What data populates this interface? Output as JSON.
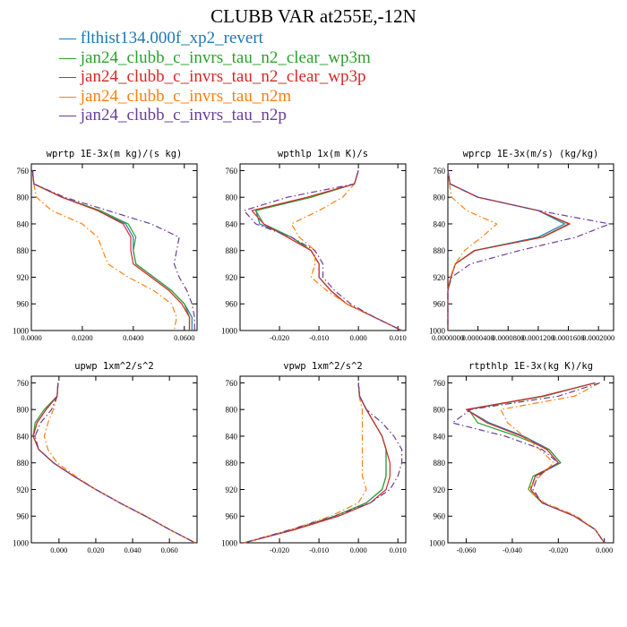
{
  "figure": {
    "title": "CLUBB VAR at255E,-12N",
    "legend": [
      {
        "label": "flthist134.000f_xp2_revert",
        "color": "#1f77b4",
        "dash": "solid"
      },
      {
        "label": "jan24_clubb_c_invrs_tau_n2_clear_wp3m",
        "color": "#2ca02c",
        "dash": "solid"
      },
      {
        "label": "jan24_clubb_c_invrs_tau_n2_clear_wp3p",
        "color": "#d62728",
        "dash": "solid"
      },
      {
        "label": "jan24_clubb_c_invrs_tau_n2m",
        "color": "#ff7f0e",
        "dash": "dashdot"
      },
      {
        "label": "jan24_clubb_c_invrs_tau_n2p",
        "color": "#6a3d9a",
        "dash": "dashdot"
      }
    ]
  },
  "chart_data": [
    {
      "type": "line",
      "title": "wprtp  1E-3x(m kg)/(s kg)",
      "xlim": [
        0.0,
        0.065
      ],
      "xticks": [
        0.0,
        0.02,
        0.04,
        0.06
      ],
      "xtick_labels": [
        "0.0000",
        "0.0200",
        "0.0400",
        "0.0600"
      ],
      "ylim": [
        1000,
        750
      ],
      "yticks": [
        760,
        800,
        840,
        880,
        920,
        960,
        1000
      ],
      "y": [
        760,
        780,
        800,
        820,
        840,
        860,
        880,
        900,
        920,
        940,
        960,
        980,
        1000
      ],
      "series": [
        {
          "values": [
            0.0005,
            0.001,
            0.012,
            0.026,
            0.037,
            0.04,
            0.04,
            0.041,
            0.048,
            0.055,
            0.06,
            0.063,
            0.063
          ]
        },
        {
          "values": [
            0.0005,
            0.001,
            0.012,
            0.027,
            0.038,
            0.041,
            0.04,
            0.041,
            0.048,
            0.055,
            0.06,
            0.062,
            0.062
          ]
        },
        {
          "values": [
            0.0005,
            0.001,
            0.012,
            0.026,
            0.036,
            0.039,
            0.039,
            0.04,
            0.047,
            0.054,
            0.059,
            0.062,
            0.062
          ]
        },
        {
          "values": [
            0.0005,
            0.001,
            0.002,
            0.008,
            0.02,
            0.026,
            0.028,
            0.03,
            0.038,
            0.048,
            0.055,
            0.057,
            0.056
          ]
        },
        {
          "values": [
            0.0005,
            0.001,
            0.013,
            0.03,
            0.047,
            0.058,
            0.057,
            0.056,
            0.058,
            0.061,
            0.063,
            0.064,
            0.064
          ]
        }
      ]
    },
    {
      "type": "line",
      "title": "wpthlp  1x(m K)/s",
      "xlim": [
        -0.03,
        0.012
      ],
      "xticks": [
        -0.02,
        -0.01,
        0.0,
        0.01
      ],
      "xtick_labels": [
        "-0.020",
        "-0.010",
        "0.000",
        "0.010"
      ],
      "ylim": [
        1000,
        750
      ],
      "yticks": [
        760,
        800,
        840,
        880,
        920,
        960,
        1000
      ],
      "y": [
        760,
        780,
        800,
        820,
        840,
        860,
        880,
        900,
        920,
        940,
        960,
        980,
        1000
      ],
      "series": [
        {
          "values": [
            0.0,
            -0.001,
            -0.012,
            -0.026,
            -0.025,
            -0.017,
            -0.012,
            -0.01,
            -0.01,
            -0.007,
            -0.003,
            0.004,
            0.011
          ]
        },
        {
          "values": [
            0.0,
            -0.001,
            -0.012,
            -0.026,
            -0.024,
            -0.017,
            -0.012,
            -0.01,
            -0.01,
            -0.007,
            -0.003,
            0.004,
            0.011
          ]
        },
        {
          "values": [
            0.0,
            -0.001,
            -0.013,
            -0.027,
            -0.024,
            -0.018,
            -0.012,
            -0.01,
            -0.01,
            -0.007,
            -0.003,
            0.004,
            0.011
          ]
        },
        {
          "values": [
            0.0,
            -0.001,
            -0.004,
            -0.01,
            -0.017,
            -0.015,
            -0.011,
            -0.011,
            -0.012,
            -0.008,
            -0.003,
            0.004,
            0.011
          ]
        },
        {
          "values": [
            0.0,
            -0.001,
            -0.018,
            -0.029,
            -0.026,
            -0.017,
            -0.011,
            -0.009,
            -0.009,
            -0.006,
            -0.002,
            0.004,
            0.011
          ]
        }
      ]
    },
    {
      "type": "line",
      "title": "wprcp  1E-3x(m/s) (kg/kg)",
      "xlim": [
        0.0,
        0.00022
      ],
      "xticks": [
        0.0,
        4e-05,
        8e-05,
        0.00012,
        0.00016,
        0.0002
      ],
      "xtick_labels": [
        "0.0000000",
        "0.0000400",
        "0.0000800",
        "0.0001200",
        "0.0001600",
        "0.0002000"
      ],
      "ylim": [
        1000,
        750
      ],
      "yticks": [
        760,
        800,
        840,
        880,
        920,
        960,
        1000
      ],
      "y": [
        760,
        780,
        800,
        820,
        840,
        860,
        880,
        900,
        920,
        940,
        960,
        980,
        1000
      ],
      "series": [
        {
          "values": [
            0.0,
            3e-06,
            4e-05,
            0.00012,
            0.000155,
            0.00012,
            3.5e-05,
            1e-05,
            4e-06,
            0.0,
            0.0,
            0.0,
            0.0
          ]
        },
        {
          "values": [
            0.0,
            3e-06,
            4e-05,
            0.00012,
            0.00016,
            0.000125,
            3.5e-05,
            1e-05,
            4e-06,
            0.0,
            0.0,
            0.0,
            0.0
          ]
        },
        {
          "values": [
            0.0,
            3e-06,
            4e-05,
            0.00012,
            0.000162,
            0.000126,
            3.6e-05,
            1e-05,
            4e-06,
            0.0,
            0.0,
            0.0,
            0.0
          ]
        },
        {
          "values": [
            0.0,
            2e-06,
            5e-06,
            2.5e-05,
            6.5e-05,
            4.5e-05,
            2.2e-05,
            1e-05,
            3e-06,
            0.0,
            0.0,
            0.0,
            0.0
          ]
        },
        {
          "values": [
            0.0,
            3e-06,
            4e-05,
            0.00012,
            0.000215,
            0.00017,
            9.5e-05,
            3e-05,
            5e-06,
            0.0,
            0.0,
            0.0,
            0.0
          ]
        }
      ]
    },
    {
      "type": "line",
      "title": "upwp  1xm^2/s^2",
      "xlim": [
        -0.015,
        0.075
      ],
      "xticks": [
        0.0,
        0.02,
        0.04,
        0.06
      ],
      "xtick_labels": [
        "0.000",
        "0.020",
        "0.040",
        "0.060"
      ],
      "ylim": [
        1000,
        750
      ],
      "yticks": [
        760,
        800,
        840,
        880,
        920,
        960,
        1000
      ],
      "y": [
        760,
        780,
        800,
        820,
        840,
        860,
        880,
        900,
        920,
        940,
        960,
        980,
        1000
      ],
      "series": [
        {
          "values": [
            -0.0005,
            -0.001,
            -0.007,
            -0.012,
            -0.014,
            -0.011,
            -0.003,
            0.008,
            0.02,
            0.033,
            0.047,
            0.06,
            0.074
          ]
        },
        {
          "values": [
            -0.0005,
            -0.001,
            -0.008,
            -0.013,
            -0.014,
            -0.011,
            -0.003,
            0.008,
            0.02,
            0.033,
            0.047,
            0.06,
            0.074
          ]
        },
        {
          "values": [
            -0.0005,
            -0.001,
            -0.007,
            -0.012,
            -0.014,
            -0.011,
            -0.003,
            0.008,
            0.02,
            0.033,
            0.047,
            0.06,
            0.074
          ]
        },
        {
          "values": [
            -0.0005,
            -0.001,
            -0.003,
            -0.006,
            -0.008,
            -0.006,
            -0.001,
            0.009,
            0.02,
            0.033,
            0.047,
            0.06,
            0.074
          ]
        },
        {
          "values": [
            -0.0005,
            -0.001,
            -0.004,
            -0.01,
            -0.013,
            -0.011,
            -0.003,
            0.008,
            0.02,
            0.033,
            0.047,
            0.06,
            0.074
          ]
        }
      ]
    },
    {
      "type": "line",
      "title": "vpwp  1xm^2/s^2",
      "xlim": [
        -0.03,
        0.012
      ],
      "xticks": [
        -0.02,
        -0.01,
        0.0,
        0.01
      ],
      "xtick_labels": [
        "-0.020",
        "-0.010",
        "0.000",
        "0.010"
      ],
      "ylim": [
        1000,
        750
      ],
      "yticks": [
        760,
        800,
        840,
        880,
        920,
        960,
        1000
      ],
      "y": [
        760,
        780,
        800,
        820,
        840,
        860,
        880,
        900,
        920,
        940,
        960,
        980,
        1000
      ],
      "series": [
        {
          "values": [
            0.0,
            0.0003,
            0.002,
            0.004,
            0.006,
            0.007,
            0.007,
            0.007,
            0.006,
            0.002,
            -0.006,
            -0.016,
            -0.029
          ]
        },
        {
          "values": [
            0.0,
            0.0003,
            0.002,
            0.004,
            0.006,
            0.007,
            0.007,
            0.007,
            0.006,
            0.002,
            -0.006,
            -0.016,
            -0.029
          ]
        },
        {
          "values": [
            0.0,
            0.0003,
            0.002,
            0.004,
            0.006,
            0.007,
            0.008,
            0.008,
            0.007,
            0.003,
            -0.005,
            -0.016,
            -0.029
          ]
        },
        {
          "values": [
            0.0,
            0.0002,
            0.001,
            0.001,
            0.001,
            0.001,
            0.001,
            0.001,
            0.002,
            0.0,
            -0.007,
            -0.017,
            -0.029
          ]
        },
        {
          "values": [
            0.0,
            0.0003,
            0.002,
            0.006,
            0.009,
            0.011,
            0.011,
            0.01,
            0.008,
            0.003,
            -0.006,
            -0.017,
            -0.029
          ]
        }
      ]
    },
    {
      "type": "line",
      "title": "rtpthlp  1E-3x(kg K)/kg",
      "xlim": [
        -0.068,
        0.004
      ],
      "xticks": [
        -0.06,
        -0.04,
        -0.02,
        0.0
      ],
      "xtick_labels": [
        "-0.060",
        "-0.040",
        "-0.020",
        "0.000"
      ],
      "ylim": [
        1000,
        750
      ],
      "yticks": [
        760,
        800,
        840,
        880,
        920,
        960,
        1000
      ],
      "y": [
        760,
        780,
        800,
        820,
        840,
        860,
        880,
        900,
        920,
        940,
        960,
        980,
        1000
      ],
      "series": [
        {
          "values": [
            -0.004,
            -0.027,
            -0.06,
            -0.05,
            -0.035,
            -0.024,
            -0.019,
            -0.03,
            -0.032,
            -0.027,
            -0.013,
            -0.004,
            0.0
          ]
        },
        {
          "values": [
            -0.004,
            -0.026,
            -0.059,
            -0.055,
            -0.038,
            -0.024,
            -0.019,
            -0.031,
            -0.033,
            -0.027,
            -0.013,
            -0.004,
            0.0
          ]
        },
        {
          "values": [
            -0.004,
            -0.027,
            -0.06,
            -0.051,
            -0.036,
            -0.025,
            -0.02,
            -0.03,
            -0.032,
            -0.027,
            -0.013,
            -0.004,
            0.0
          ]
        },
        {
          "values": [
            -0.002,
            -0.013,
            -0.045,
            -0.042,
            -0.035,
            -0.028,
            -0.022,
            -0.028,
            -0.033,
            -0.026,
            -0.012,
            -0.004,
            0.0
          ]
        },
        {
          "values": [
            -0.002,
            -0.02,
            -0.058,
            -0.066,
            -0.043,
            -0.027,
            -0.02,
            -0.029,
            -0.031,
            -0.027,
            -0.013,
            -0.004,
            0.0
          ]
        }
      ]
    }
  ]
}
